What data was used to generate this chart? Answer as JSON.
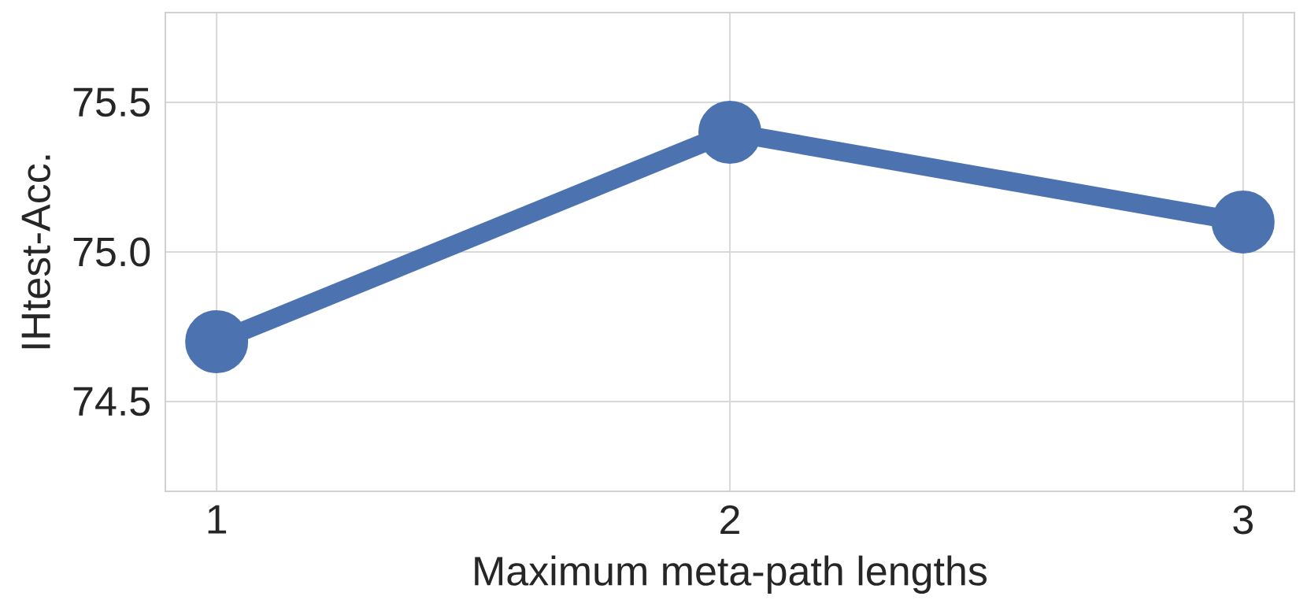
{
  "chart_data": {
    "type": "line",
    "xlabel": "Maximum meta-path lengths",
    "ylabel": "IHtest-Acc.",
    "x": [
      1,
      2,
      3
    ],
    "series": [
      {
        "color": "#4c72b0",
        "values": [
          74.7,
          75.4,
          75.1
        ]
      }
    ],
    "xlim": [
      0.9,
      3.1
    ],
    "xticks": [
      1,
      2,
      3
    ],
    "ylim": [
      74.2,
      75.8
    ],
    "yticks": [
      74.5,
      {
        "value": 75.0,
        "label": "75.0"
      },
      75.5
    ],
    "grid": true,
    "marker": "circle",
    "line_style": "solid"
  }
}
